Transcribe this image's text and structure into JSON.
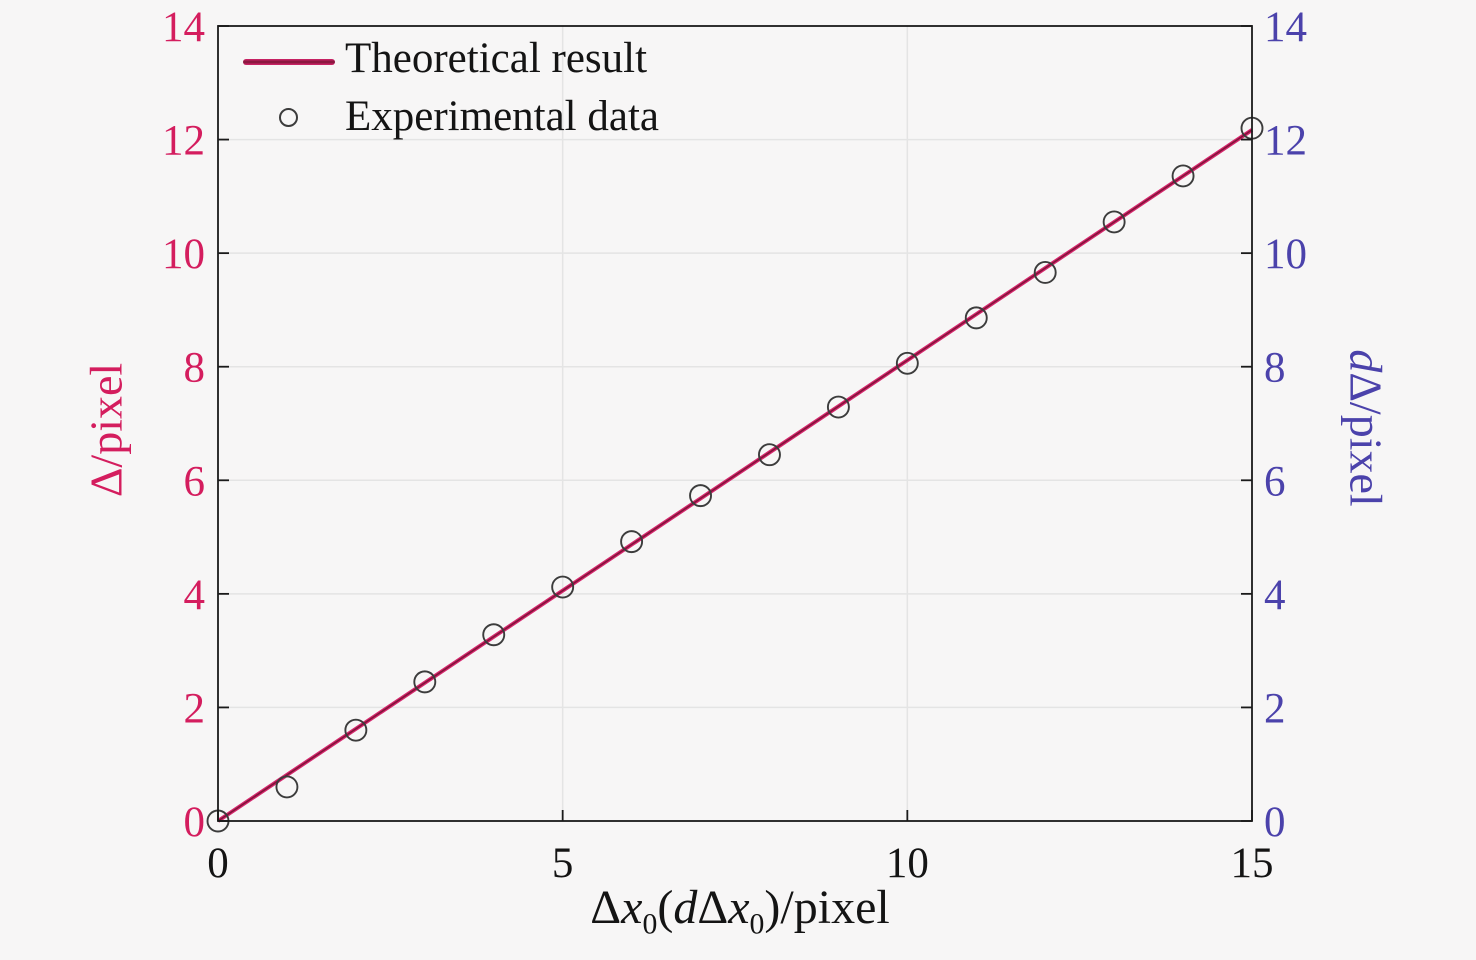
{
  "chart_data": {
    "type": "line",
    "title": "",
    "xlabel": "Δx0(dΔx0)/pixel",
    "xlabel_parts": [
      {
        "t": "Δ"
      },
      {
        "t": "x",
        "i": true
      },
      {
        "t": "0",
        "sub": true
      },
      {
        "t": "("
      },
      {
        "t": "d",
        "i": true
      },
      {
        "t": "Δ"
      },
      {
        "t": "x",
        "i": true
      },
      {
        "t": "0",
        "sub": true
      },
      {
        "t": ")/pixel"
      }
    ],
    "ylabel_left": "Δ/pixel",
    "ylabel_left_parts": [
      {
        "t": "Δ/pixel"
      }
    ],
    "ylabel_right": "dΔ/pixel",
    "ylabel_right_parts": [
      {
        "t": "d",
        "i": true
      },
      {
        "t": "Δ/pixel"
      }
    ],
    "xlim": [
      0,
      15
    ],
    "ylim": [
      0,
      14
    ],
    "xticks": [
      0,
      5,
      10,
      15
    ],
    "yticks_left": [
      0,
      2,
      4,
      6,
      8,
      10,
      12,
      14
    ],
    "yticks_right": [
      0,
      2,
      4,
      6,
      8,
      10,
      12,
      14
    ],
    "xgrid": [
      5,
      10
    ],
    "ygrid": [
      2,
      4,
      6,
      8,
      10,
      12
    ],
    "grid": true,
    "legend_position": "top-left",
    "series": [
      {
        "name": "Theoretical result",
        "type": "line",
        "color": "#d5256c",
        "x": [
          0,
          15
        ],
        "y": [
          0,
          12.17
        ]
      },
      {
        "name": "Experimental data",
        "type": "scatter",
        "marker": "open-circle",
        "color": "#3c3c3c",
        "x": [
          0,
          1,
          2,
          3,
          4,
          5,
          6,
          7,
          8,
          9,
          10,
          11,
          12,
          13,
          14,
          15
        ],
        "y": [
          0.0,
          0.6,
          1.6,
          2.45,
          3.28,
          4.12,
          4.92,
          5.73,
          6.45,
          7.29,
          8.06,
          8.86,
          9.66,
          10.55,
          11.36,
          12.2
        ]
      }
    ],
    "colors": {
      "left_axis": "#d41d5e",
      "right_axis": "#4b42ab",
      "line_core": "#7e1538",
      "grid": "#e4e4e4",
      "box": "#1a1a1a",
      "text": "#141414",
      "background": "#f7f6f6"
    }
  }
}
